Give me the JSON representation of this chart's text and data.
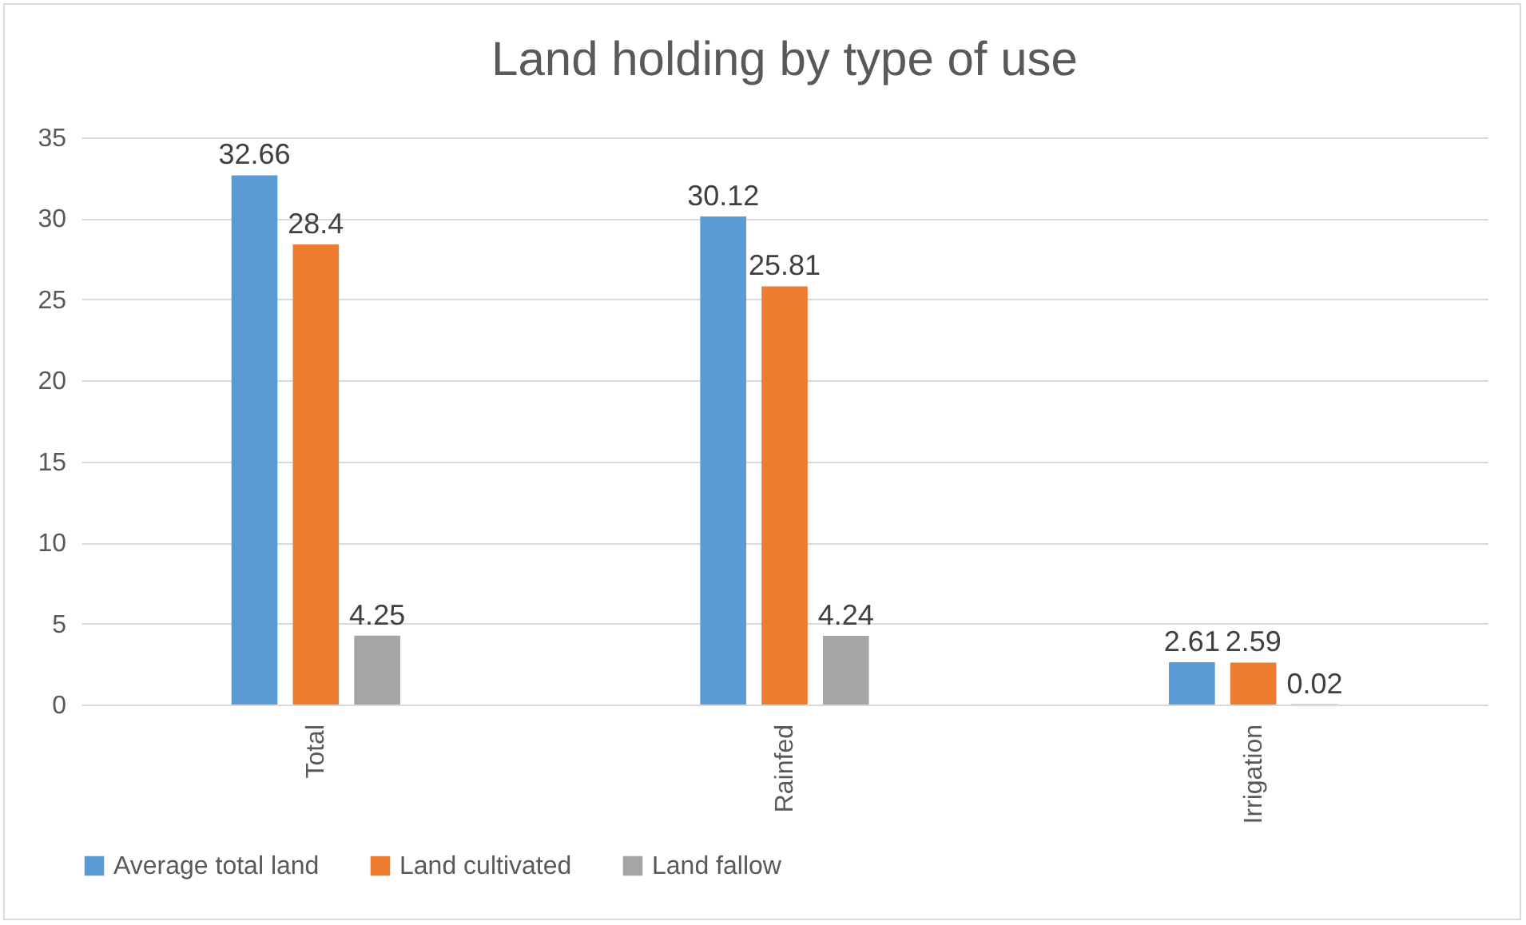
{
  "chart_data": {
    "type": "bar",
    "title": "Land holding by type of use",
    "categories": [
      "Total",
      "Rainfed",
      "Irrigation"
    ],
    "series": [
      {
        "name": "Average total land",
        "color": "#5b9bd5",
        "values": [
          32.66,
          30.12,
          2.61
        ]
      },
      {
        "name": "Land cultivated",
        "color": "#ed7d31",
        "values": [
          28.4,
          25.81,
          2.59
        ]
      },
      {
        "name": "Land fallow",
        "color": "#a5a5a5",
        "values": [
          4.25,
          4.24,
          0.02
        ]
      }
    ],
    "ylim": [
      0,
      35
    ],
    "yticks": [
      0,
      5,
      10,
      15,
      20,
      25,
      30,
      35
    ],
    "grid": "y",
    "legend": "bottom",
    "data_labels": true
  }
}
